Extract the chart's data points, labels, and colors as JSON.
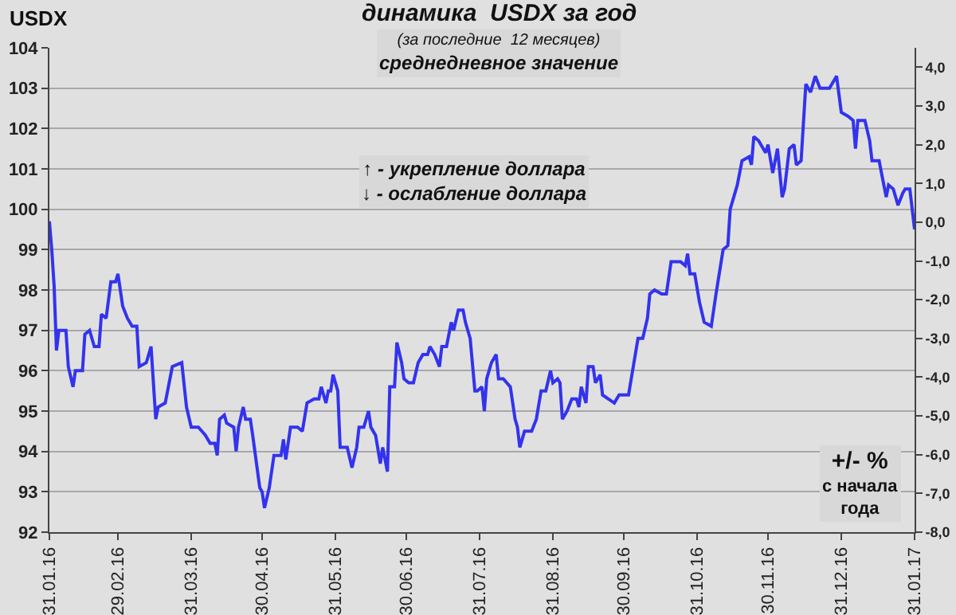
{
  "chart_data": {
    "type": "line",
    "title": "динамика  USDX за год",
    "subtitle": "(за последние  12 месяцев)\nсреднедневное значение",
    "ylabel": "USDX",
    "y2label": "+/- %\nс начала\nгода",
    "annotations": [
      "↑ - укрепление доллара\n↓ - ослабление доллара"
    ],
    "x": [
      "2016-01-31",
      "2016-02-01",
      "2016-02-02",
      "2016-02-03",
      "2016-02-04",
      "2016-02-07",
      "2016-02-08",
      "2016-02-10",
      "2016-02-11",
      "2016-02-14",
      "2016-02-15",
      "2016-02-17",
      "2016-02-19",
      "2016-02-21",
      "2016-02-22",
      "2016-02-24",
      "2016-02-26",
      "2016-02-28",
      "2016-02-29",
      "2016-03-02",
      "2016-03-04",
      "2016-03-06",
      "2016-03-08",
      "2016-03-09",
      "2016-03-12",
      "2016-03-14",
      "2016-03-16",
      "2016-03-17",
      "2016-03-20",
      "2016-03-23",
      "2016-03-27",
      "2016-03-29",
      "2016-03-31",
      "2016-04-03",
      "2016-04-06",
      "2016-04-08",
      "2016-04-10",
      "2016-04-11",
      "2016-04-12",
      "2016-04-14",
      "2016-04-15",
      "2016-04-18",
      "2016-04-19",
      "2016-04-20",
      "2016-04-22",
      "2016-04-23",
      "2016-04-25",
      "2016-04-26",
      "2016-04-29",
      "2016-04-30",
      "2016-05-01",
      "2016-05-03",
      "2016-05-05",
      "2016-05-08",
      "2016-05-09",
      "2016-05-10",
      "2016-05-12",
      "2016-05-15",
      "2016-05-17",
      "2016-05-19",
      "2016-05-22",
      "2016-05-24",
      "2016-05-25",
      "2016-05-27",
      "2016-05-28",
      "2016-05-29",
      "2016-05-30",
      "2016-06-01",
      "2016-06-02",
      "2016-06-05",
      "2016-06-07",
      "2016-06-09",
      "2016-06-10",
      "2016-06-12",
      "2016-06-14",
      "2016-06-15",
      "2016-06-17",
      "2016-06-19",
      "2016-06-20",
      "2016-06-22",
      "2016-06-23",
      "2016-06-25",
      "2016-06-26",
      "2016-06-28",
      "2016-06-29",
      "2016-07-01",
      "2016-07-03",
      "2016-07-05",
      "2016-07-07",
      "2016-07-09",
      "2016-07-10",
      "2016-07-12",
      "2016-07-14",
      "2016-07-15",
      "2016-07-17",
      "2016-07-19",
      "2016-07-20",
      "2016-07-22",
      "2016-07-24",
      "2016-07-25",
      "2016-07-27",
      "2016-07-29",
      "2016-07-30",
      "2016-08-01",
      "2016-08-02",
      "2016-08-03",
      "2016-08-05",
      "2016-08-07",
      "2016-08-08",
      "2016-08-10",
      "2016-08-13",
      "2016-08-15",
      "2016-08-16",
      "2016-08-17",
      "2016-08-19",
      "2016-08-22",
      "2016-08-24",
      "2016-08-26",
      "2016-08-28",
      "2016-08-30",
      "2016-08-31",
      "2016-09-02",
      "2016-09-03",
      "2016-09-04",
      "2016-09-06",
      "2016-09-08",
      "2016-09-10",
      "2016-09-11",
      "2016-09-12",
      "2016-09-14",
      "2016-09-15",
      "2016-09-17",
      "2016-09-18",
      "2016-09-20",
      "2016-09-21",
      "2016-09-26",
      "2016-09-28",
      "2016-10-02",
      "2016-10-04",
      "2016-10-06",
      "2016-10-08",
      "2016-10-10",
      "2016-10-11",
      "2016-10-13",
      "2016-10-16",
      "2016-10-18",
      "2016-10-20",
      "2016-10-24",
      "2016-10-26",
      "2016-10-27",
      "2016-10-28",
      "2016-10-30",
      "2016-11-01",
      "2016-11-03",
      "2016-11-06",
      "2016-11-08",
      "2016-11-11",
      "2016-11-13",
      "2016-11-14",
      "2016-11-16",
      "2016-11-17",
      "2016-11-19",
      "2016-11-22",
      "2016-11-23",
      "2016-11-24",
      "2016-11-26",
      "2016-11-29",
      "2016-11-30",
      "2016-12-02",
      "2016-12-04",
      "2016-12-06",
      "2016-12-07",
      "2016-12-09",
      "2016-12-11",
      "2016-12-12",
      "2016-12-14",
      "2016-12-16",
      "2016-12-18",
      "2016-12-20",
      "2016-12-22",
      "2016-12-26",
      "2016-12-29",
      "2016-12-31",
      "2017-01-03",
      "2017-01-05",
      "2017-01-06",
      "2017-01-07",
      "2017-01-10",
      "2017-01-12",
      "2017-01-13",
      "2017-01-16",
      "2017-01-17",
      "2017-01-19",
      "2017-01-20",
      "2017-01-22",
      "2017-01-24",
      "2017-01-26",
      "2017-01-27",
      "2017-01-29",
      "2017-01-30",
      "2017-01-31"
    ],
    "series": [
      {
        "color": "#3333ee",
        "values": [
          99.7,
          99.0,
          98.1,
          96.5,
          97.0,
          97.0,
          96.1,
          95.6,
          96.0,
          96.0,
          96.9,
          97.0,
          96.6,
          96.6,
          97.4,
          97.3,
          98.2,
          98.2,
          98.4,
          97.6,
          97.3,
          97.1,
          97.1,
          96.1,
          96.2,
          96.6,
          94.8,
          95.1,
          95.2,
          96.1,
          96.2,
          95.1,
          94.6,
          94.6,
          94.4,
          94.2,
          94.2,
          93.9,
          94.8,
          94.9,
          94.7,
          94.6,
          94.0,
          94.6,
          95.1,
          94.8,
          94.8,
          94.4,
          93.1,
          93.0,
          92.6,
          93.1,
          93.9,
          93.9,
          94.3,
          93.8,
          94.6,
          94.6,
          94.5,
          95.2,
          95.3,
          95.3,
          95.6,
          95.2,
          95.5,
          95.5,
          95.9,
          95.5,
          94.1,
          94.1,
          93.6,
          94.1,
          94.6,
          94.6,
          95.0,
          94.6,
          94.4,
          93.7,
          94.1,
          93.5,
          95.6,
          95.6,
          96.7,
          96.2,
          95.8,
          95.7,
          95.7,
          96.2,
          96.4,
          96.4,
          96.6,
          96.4,
          96.1,
          96.6,
          96.6,
          97.2,
          97.0,
          97.5,
          97.5,
          97.2,
          96.8,
          95.5,
          95.5,
          95.6,
          95.0,
          95.8,
          96.2,
          96.4,
          95.8,
          95.8,
          95.6,
          94.8,
          94.6,
          94.1,
          94.5,
          94.5,
          94.8,
          95.5,
          95.5,
          96.0,
          95.7,
          95.8,
          95.7,
          94.8,
          95.0,
          95.3,
          95.3,
          95.1,
          95.6,
          95.2,
          96.1,
          96.1,
          95.7,
          95.9,
          95.4,
          95.2,
          95.4,
          95.4,
          96.1,
          96.8,
          96.8,
          97.3,
          97.9,
          98.0,
          97.9,
          97.9,
          98.7,
          98.7,
          98.6,
          98.9,
          98.4,
          98.4,
          97.7,
          97.2,
          97.1,
          97.9,
          99.0,
          99.1,
          100.0,
          100.4,
          100.6,
          101.2,
          101.3,
          101.1,
          101.8,
          101.7,
          101.4,
          101.6,
          100.9,
          101.5,
          100.3,
          100.5,
          101.5,
          101.6,
          101.1,
          101.2,
          103.1,
          102.9,
          103.3,
          103.0,
          103.0,
          103.3,
          102.4,
          102.3,
          102.2,
          101.5,
          102.2,
          102.2,
          101.7,
          101.2,
          101.2,
          100.9,
          100.3,
          100.6,
          100.5,
          100.1,
          100.4,
          100.5,
          100.5,
          100.0,
          99.5
        ]
      }
    ],
    "xlim": [
      "2016-01-31",
      "2017-01-31"
    ],
    "xticks": [
      {
        "value": "2016-01-31",
        "label": "31.01.16"
      },
      {
        "value": "2016-02-29",
        "label": "29.02.16"
      },
      {
        "value": "2016-03-31",
        "label": "31.03.16"
      },
      {
        "value": "2016-04-30",
        "label": "30.04.16"
      },
      {
        "value": "2016-05-31",
        "label": "31.05.16"
      },
      {
        "value": "2016-06-30",
        "label": "30.06.16"
      },
      {
        "value": "2016-07-31",
        "label": "31.07.16"
      },
      {
        "value": "2016-08-31",
        "label": "31.08.16"
      },
      {
        "value": "2016-09-30",
        "label": "30.09.16"
      },
      {
        "value": "2016-10-31",
        "label": "31.10.16"
      },
      {
        "value": "2016-11-30",
        "label": "30.11.16"
      },
      {
        "value": "2016-12-31",
        "label": "31.12.16"
      },
      {
        "value": "2017-01-31",
        "label": "31.01.17"
      }
    ],
    "ylim": [
      92,
      104
    ],
    "yticks": [
      92,
      93,
      94,
      95,
      96,
      97,
      98,
      99,
      100,
      101,
      102,
      103,
      104
    ],
    "y2lim": [
      -8.0,
      4.5
    ],
    "y2ticks": [
      {
        "value": -8,
        "label": "-8,0"
      },
      {
        "value": -7,
        "label": "-7,0"
      },
      {
        "value": -6,
        "label": "-6,0"
      },
      {
        "value": -5,
        "label": "-5,0"
      },
      {
        "value": -4,
        "label": "-4,0"
      },
      {
        "value": -3,
        "label": "-3,0"
      },
      {
        "value": -2,
        "label": "-2,0"
      },
      {
        "value": -1,
        "label": "-1,0"
      },
      {
        "value": 0,
        "label": "0,0"
      },
      {
        "value": 1,
        "label": "1,0"
      },
      {
        "value": 2,
        "label": "2,0"
      },
      {
        "value": 3,
        "label": "3,0"
      },
      {
        "value": 4,
        "label": "4,0"
      }
    ],
    "grid": "y",
    "marker": "none",
    "line_style": "solid"
  }
}
